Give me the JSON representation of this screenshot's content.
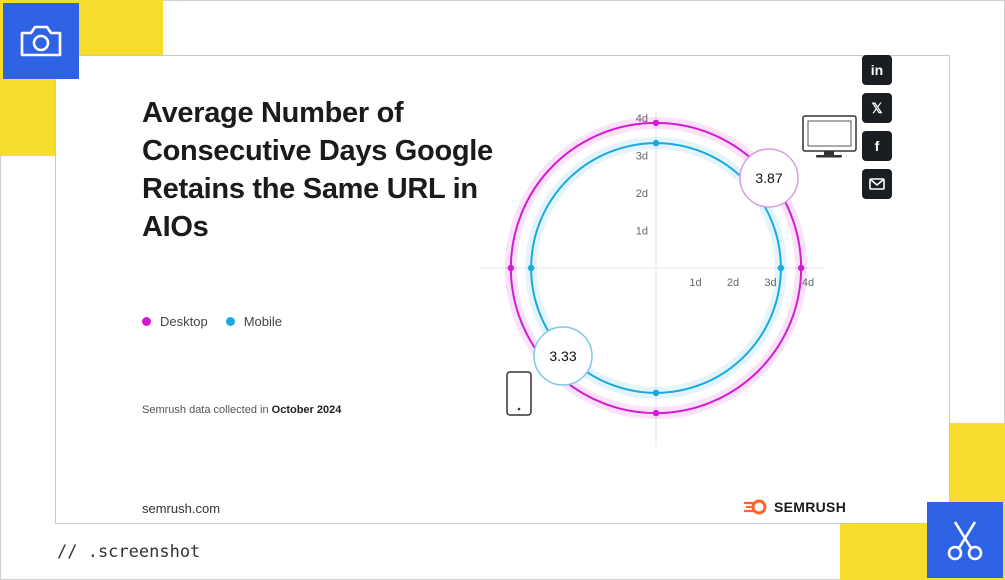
{
  "card": {
    "title": "Average Number of Consecutive Days Google Retains the Same URL in AIOs",
    "source_prefix": "Semrush data collected in ",
    "source_date": "October 2024",
    "site": "semrush.com",
    "brand": "SEMRUSH"
  },
  "share": {
    "linkedin": "in",
    "x": "𝕏",
    "facebook": "f"
  },
  "watermark": "// .screenshot",
  "colors": {
    "desktop": "#d41bd4",
    "mobile": "#1aa9e0",
    "yellow": "#f7dc2c",
    "blue": "#2f63e6",
    "brand_orange": "#ff642d"
  },
  "chart_data": {
    "type": "radial",
    "axis": {
      "max": 4,
      "ticks": [
        "1d",
        "2d",
        "3d",
        "4d"
      ]
    },
    "legend": [
      {
        "label": "Desktop",
        "color": "#d41bd4"
      },
      {
        "label": "Mobile",
        "color": "#1aa9e0"
      }
    ],
    "series": [
      {
        "name": "Desktop",
        "value": 3.87,
        "label": "3.87",
        "color": "#d41bd4"
      },
      {
        "name": "Mobile",
        "value": 3.33,
        "label": "3.33",
        "color": "#1aa9e0"
      }
    ]
  }
}
